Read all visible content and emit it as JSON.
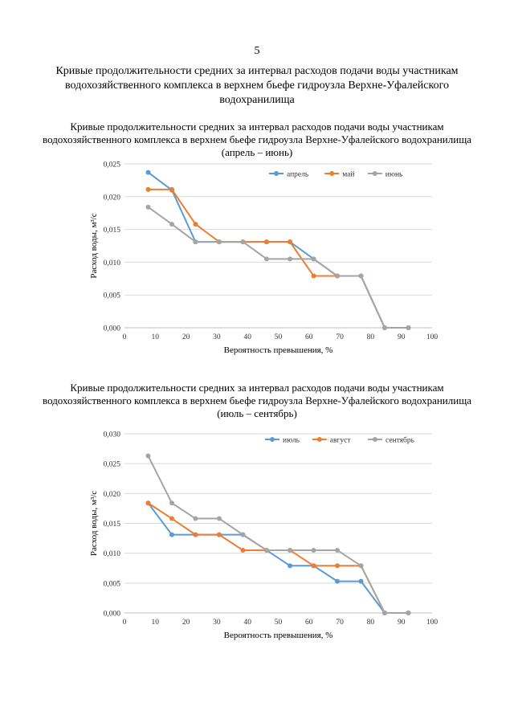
{
  "page": {
    "number": "5",
    "title": "Кривые продолжительности средних за интервал расходов подачи воды участникам водохозяйственного комплекса в верхнем бьефе гидроузла Верхне-Уфалейского водохранилища"
  },
  "chart_data": [
    {
      "type": "line",
      "title": "Кривые продолжительности средних за интервал расходов подачи воды участникам водохозяйственного комплекса в верхнем бьефе гидроузла Верхне-Уфалейского водохранилища (апрель – июнь)",
      "xlabel": "Вероятность превышения, %",
      "ylabel": "Расход воды, м³/с",
      "xlim": [
        0,
        100
      ],
      "ylim": [
        0,
        0.025
      ],
      "xticks": [
        0,
        10,
        20,
        30,
        40,
        50,
        60,
        70,
        80,
        90,
        100
      ],
      "yticks": [
        "0,000",
        "0,005",
        "0,010",
        "0,015",
        "0,020",
        "0,025"
      ],
      "x": [
        7.7,
        15.4,
        23.1,
        30.8,
        38.5,
        46.2,
        53.8,
        61.5,
        69.2,
        76.9,
        84.6,
        92.3
      ],
      "grid": true,
      "legend_position": "top-right",
      "series": [
        {
          "name": "апрель",
          "color": "#5b9bd5",
          "values": [
            0.0237,
            0.021,
            0.0131,
            0.0131,
            0.0131,
            0.0131,
            0.0131,
            0.0105,
            0.0079,
            0.0079,
            0,
            0
          ]
        },
        {
          "name": "май",
          "color": "#ed7d31",
          "values": [
            0.0211,
            0.0211,
            0.0158,
            0.0131,
            0.0131,
            0.0131,
            0.0131,
            0.0079,
            0.0079,
            0.0079,
            0,
            0
          ]
        },
        {
          "name": "июнь",
          "color": "#a5a5a5",
          "values": [
            0.0184,
            0.0158,
            0.0131,
            0.0131,
            0.0131,
            0.0105,
            0.0105,
            0.0105,
            0.0079,
            0.0079,
            0,
            0
          ]
        }
      ]
    },
    {
      "type": "line",
      "title": "Кривые продолжительности средних за интервал расходов подачи воды участникам водохозяйственного комплекса в верхнем бьефе гидроузла Верхне-Уфалейского водохранилища (июль – сентябрь)",
      "xlabel": "Вероятность превышения, %",
      "ylabel": "Расход воды, м³/с",
      "xlim": [
        0,
        100
      ],
      "ylim": [
        0,
        0.03
      ],
      "xticks": [
        0,
        10,
        20,
        30,
        40,
        50,
        60,
        70,
        80,
        90,
        100
      ],
      "yticks": [
        "0,000",
        "0,005",
        "0,010",
        "0,015",
        "0,020",
        "0,025",
        "0,030"
      ],
      "x": [
        7.7,
        15.4,
        23.1,
        30.8,
        38.5,
        46.2,
        53.8,
        61.5,
        69.2,
        76.9,
        84.6,
        92.3
      ],
      "grid": true,
      "legend_position": "top-right",
      "series": [
        {
          "name": "июль",
          "color": "#5b9bd5",
          "values": [
            0.0184,
            0.0131,
            0.0131,
            0.0131,
            0.0131,
            0.0105,
            0.0079,
            0.0079,
            0.0053,
            0.0053,
            0,
            0
          ]
        },
        {
          "name": "август",
          "color": "#ed7d31",
          "values": [
            0.0184,
            0.0158,
            0.0131,
            0.0131,
            0.0105,
            0.0105,
            0.0105,
            0.0079,
            0.0079,
            0.0079,
            0,
            0
          ]
        },
        {
          "name": "сентябрь",
          "color": "#a5a5a5",
          "values": [
            0.0263,
            0.0184,
            0.0158,
            0.0158,
            0.0131,
            0.0105,
            0.0105,
            0.0105,
            0.0105,
            0.0079,
            0,
            0
          ]
        }
      ]
    }
  ]
}
